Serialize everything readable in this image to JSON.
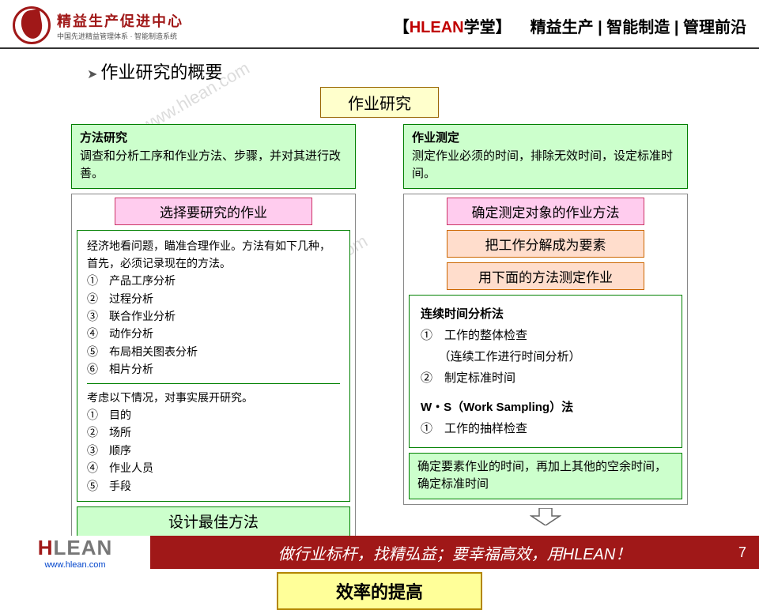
{
  "header": {
    "logo_cn": "精益生产促进中心",
    "logo_sub": "中国先进精益管理体系 · 智能制造系统",
    "tag_prefix": "【",
    "tag_red": "HLEAN",
    "tag_black": "学堂",
    "tag_suffix": "】",
    "categories": "精益生产 | 智能制造 | 管理前沿"
  },
  "overview_title": "作业研究的概要",
  "root_label": "作业研究",
  "left": {
    "intro_title": "方法研究",
    "intro_body": "调查和分析工序和作业方法、步骤，并对其进行改善。",
    "step1": "选择要研究的作业",
    "body1_lead": "经济地看问题，瞄准合理作业。方法有如下几种，首先，必须记录现在的方法。",
    "body1_items": [
      "①　产品工序分析",
      "②　过程分析",
      "③　联合作业分析",
      "④　动作分析",
      "⑤　布局相关图表分析",
      "⑥　相片分析"
    ],
    "body2_lead": "考虑以下情况，对事实展开研究。",
    "body2_items": [
      "①　目的",
      "②　场所",
      "③　顺序",
      "④　作业人员",
      "⑤　手段"
    ],
    "final": "设计最佳方法"
  },
  "right": {
    "intro_title": "作业测定",
    "intro_body": "测定作业必须的时间，排除无效时间，设定标准时间。",
    "step1": "确定测定对象的作业方法",
    "step2": "把工作分解成为要素",
    "step3": "用下面的方法测定作业",
    "method1_title": "连续时间分析法",
    "method1_items": [
      "①　工作的整体检查",
      "　　（连续工作进行时间分析）",
      "②　制定标准时间"
    ],
    "method2_title": "W・S（Work Sampling）法",
    "method2_items": [
      "①　工作的抽样检查"
    ],
    "final": "确定要素作业的时间，再加上其他的空余时间，确定标准时间"
  },
  "result": "效率的提高",
  "footer": {
    "logo_h": "H",
    "logo_lean": "LEAN",
    "url": "www.hlean.com",
    "slogan": "做行业标杆，找精弘益；要幸福高效，用HLEAN！",
    "page": "7"
  },
  "colors": {
    "brand_red": "#a01818",
    "green_border": "#008000",
    "green_fill": "#ccffcc",
    "pink_fill": "#ffccee",
    "orange_fill": "#ffddcc",
    "yellow_fill": "#ffff99",
    "root_fill": "#ffffcc"
  }
}
